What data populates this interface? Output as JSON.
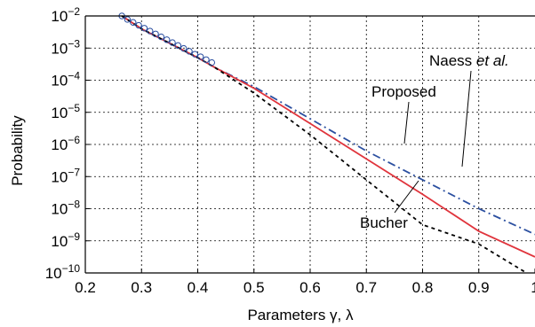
{
  "chart_data": {
    "type": "line",
    "xlabel": "Parameters γ, λ",
    "ylabel": "Probability",
    "xlim": [
      0.2,
      1.0
    ],
    "ylim_log10": [
      -10,
      -2
    ],
    "y_scale": "log",
    "grid": true,
    "x_ticks": [
      0.2,
      0.3,
      0.4,
      0.5,
      0.6,
      0.7,
      0.8,
      0.9,
      1.0
    ],
    "x_tick_labels": [
      "0.2",
      "0.3",
      "0.4",
      "0.5",
      "0.6",
      "0.7",
      "0.8",
      "0.9",
      "1"
    ],
    "y_ticks_exp": [
      -2,
      -3,
      -4,
      -5,
      -6,
      -7,
      -8,
      -9,
      -10
    ],
    "y_tick_base": "10",
    "y_tick_exponent_labels": [
      "−2",
      "−3",
      "−4",
      "−5",
      "−6",
      "−7",
      "−8",
      "−9",
      "−10"
    ],
    "series": [
      {
        "name": "Naess et al.",
        "label_main": "Naess ",
        "label_italic": "et al.",
        "color": "#2b4fa0",
        "style": "dash-dot",
        "x": [
          0.265,
          0.3,
          0.35,
          0.4,
          0.43,
          0.5,
          0.6,
          0.7,
          0.8,
          0.9,
          1.0
        ],
        "log10_y": [
          -2.0,
          -2.4,
          -2.85,
          -3.3,
          -3.6,
          -4.2,
          -5.2,
          -6.2,
          -7.1,
          -8.0,
          -8.8
        ]
      },
      {
        "name": "Proposed",
        "color": "#e0343c",
        "style": "solid",
        "x": [
          0.265,
          0.3,
          0.35,
          0.4,
          0.43,
          0.5,
          0.6,
          0.7,
          0.8,
          0.9,
          1.0
        ],
        "log10_y": [
          -2.0,
          -2.4,
          -2.85,
          -3.3,
          -3.6,
          -4.25,
          -5.35,
          -6.45,
          -7.55,
          -8.7,
          -9.5
        ]
      },
      {
        "name": "Bucher",
        "color": "#000000",
        "style": "dashed",
        "x": [
          0.265,
          0.3,
          0.35,
          0.4,
          0.43,
          0.5,
          0.6,
          0.7,
          0.8,
          0.9,
          0.985
        ],
        "log10_y": [
          -2.0,
          -2.4,
          -2.85,
          -3.3,
          -3.6,
          -4.4,
          -5.7,
          -7.1,
          -8.5,
          -9.1,
          -10.0
        ]
      },
      {
        "name": "Markers",
        "color": "#2b4fa0",
        "style": "circle-markers",
        "x": [
          0.265,
          0.275,
          0.285,
          0.295,
          0.305,
          0.315,
          0.325,
          0.335,
          0.345,
          0.355,
          0.365,
          0.375,
          0.385,
          0.395,
          0.405,
          0.415,
          0.425
        ],
        "log10_y": [
          -2.0,
          -2.11,
          -2.2,
          -2.29,
          -2.38,
          -2.47,
          -2.56,
          -2.65,
          -2.74,
          -2.83,
          -2.92,
          -3.01,
          -3.1,
          -3.19,
          -3.27,
          -3.36,
          -3.45
        ]
      }
    ],
    "annotations": [
      {
        "text": "Naess et al.",
        "series": "Naess et al."
      },
      {
        "text": "Proposed",
        "series": "Proposed"
      },
      {
        "text": "Bucher",
        "series": "Bucher"
      }
    ]
  }
}
